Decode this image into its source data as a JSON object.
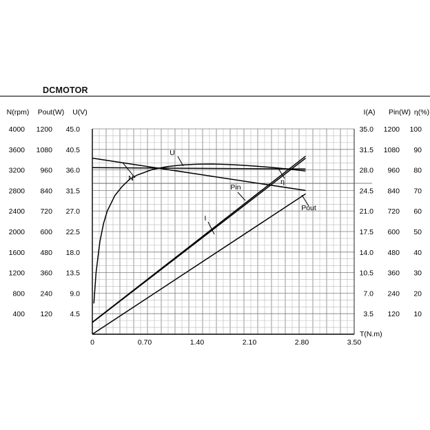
{
  "chart_data": {
    "type": "line",
    "title": "DCMOTOR",
    "xlabel": "T(N.m)",
    "x_ticks": [
      "0",
      "0.70",
      "1.40",
      "2.10",
      "2.80",
      "3.50"
    ],
    "xlim": [
      0,
      3.5
    ],
    "grid": true,
    "left_axes": [
      {
        "name": "N(rpm)",
        "ticks": [
          "4000",
          "3600",
          "3200",
          "2800",
          "2400",
          "2000",
          "1600",
          "1200",
          "800",
          "400"
        ]
      },
      {
        "name": "Pout(W)",
        "ticks": [
          "1200",
          "1080",
          "960",
          "840",
          "720",
          "600",
          "480",
          "360",
          "240",
          "120"
        ]
      },
      {
        "name": "U(V)",
        "ticks": [
          "45.0",
          "40.5",
          "36.0",
          "31.5",
          "27.0",
          "22.5",
          "18.0",
          "13.5",
          "9.0",
          "4.5"
        ]
      }
    ],
    "right_axes": [
      {
        "name": "I(A)",
        "ticks": [
          "35.0",
          "31.5",
          "28.0",
          "24.5",
          "21.0",
          "17.5",
          "14.0",
          "10.5",
          "7.0",
          "3.5"
        ]
      },
      {
        "name": "Pin(W)",
        "ticks": [
          "1200",
          "1080",
          "960",
          "840",
          "720",
          "600",
          "480",
          "360",
          "240",
          "120"
        ]
      },
      {
        "name": "η(%)",
        "ticks": [
          "100",
          "90",
          "80",
          "70",
          "60",
          "50",
          "40",
          "30",
          "20",
          "10"
        ]
      }
    ],
    "series": [
      {
        "name": "N",
        "unit": "rpm",
        "x": [
          0,
          2.85
        ],
        "y": [
          3430,
          2800
        ]
      },
      {
        "name": "U",
        "unit": "V",
        "x": [
          0,
          2.85
        ],
        "y": [
          36.5,
          36.2
        ]
      },
      {
        "name": "I",
        "unit": "A",
        "x": [
          0,
          2.85
        ],
        "y": [
          2.0,
          30.0
        ]
      },
      {
        "name": "Pin",
        "unit": "W",
        "x": [
          0,
          2.85
        ],
        "y": [
          70,
          1040
        ]
      },
      {
        "name": "Pout",
        "unit": "W",
        "x": [
          0,
          2.85
        ],
        "y": [
          0,
          820
        ]
      },
      {
        "name": "η",
        "unit": "%",
        "x": [
          0.02,
          0.05,
          0.1,
          0.15,
          0.2,
          0.3,
          0.4,
          0.5,
          0.6,
          0.8,
          1.0,
          1.2,
          1.4,
          1.6,
          1.8,
          2.0,
          2.2,
          2.4,
          2.6,
          2.85
        ],
        "y": [
          15,
          30,
          45,
          54,
          60,
          67.5,
          72,
          75.5,
          77.5,
          80.2,
          81.6,
          82.4,
          82.8,
          82.9,
          82.7,
          82.3,
          81.8,
          81.2,
          80.5,
          79.5
        ]
      }
    ],
    "reference_line_y_frac": 0.735
  }
}
